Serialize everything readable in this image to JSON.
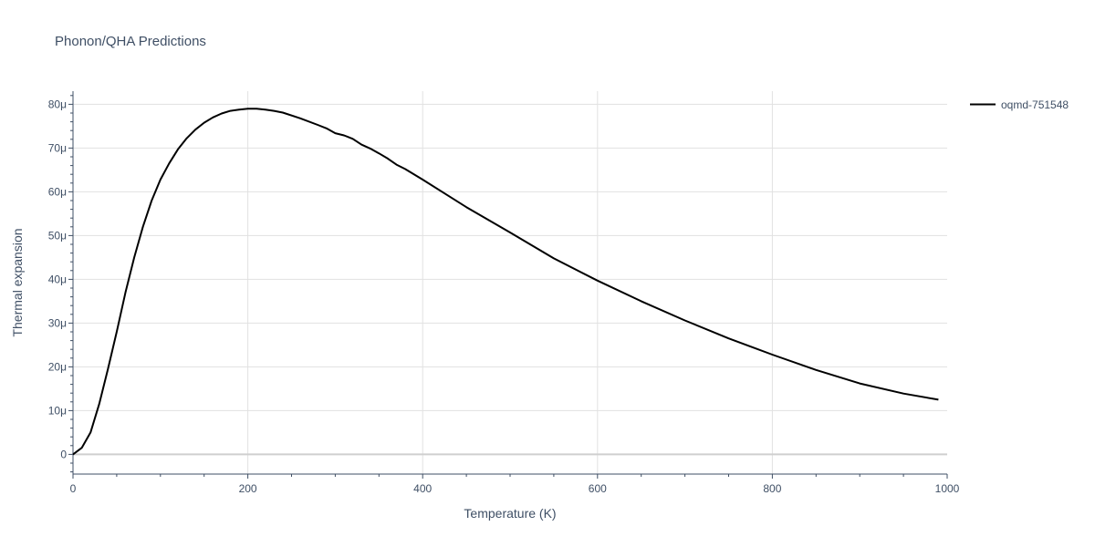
{
  "chart_data": {
    "type": "line",
    "title": "Phonon/QHA Predictions",
    "xlabel": "Temperature (K)",
    "ylabel": "Thermal expansion",
    "xlim": [
      0,
      1000
    ],
    "ylim": [
      -4.5,
      83
    ],
    "x_ticks": [
      0,
      200,
      400,
      600,
      800,
      1000
    ],
    "x_tick_labels": [
      "0",
      "200",
      "400",
      "600",
      "800",
      "1000"
    ],
    "y_ticks": [
      0,
      10,
      20,
      30,
      40,
      50,
      60,
      70,
      80
    ],
    "y_tick_labels": [
      "0",
      "10μ",
      "20μ",
      "30μ",
      "40μ",
      "50μ",
      "60μ",
      "70μ",
      "80μ"
    ],
    "grid": true,
    "legend_position": "top-right",
    "series": [
      {
        "name": "oqmd-751548",
        "color": "#000000",
        "x": [
          0,
          10,
          20,
          30,
          40,
          50,
          60,
          70,
          80,
          90,
          100,
          110,
          120,
          130,
          140,
          150,
          160,
          170,
          180,
          190,
          200,
          210,
          220,
          230,
          240,
          260,
          280,
          290,
          300,
          310,
          320,
          330,
          340,
          350,
          360,
          370,
          380,
          400,
          450,
          500,
          550,
          600,
          650,
          700,
          750,
          800,
          850,
          900,
          950,
          990
        ],
        "values": [
          0,
          1.5,
          5,
          11.5,
          19.5,
          28,
          37,
          45,
          52,
          58,
          62.8,
          66.5,
          69.7,
          72.2,
          74.2,
          75.8,
          77,
          77.9,
          78.5,
          78.8,
          79,
          79,
          78.8,
          78.5,
          78.1,
          76.8,
          75.3,
          74.5,
          73.4,
          72.9,
          72.1,
          70.8,
          69.9,
          68.8,
          67.6,
          66.2,
          65.2,
          62.8,
          56.5,
          50.7,
          44.8,
          39.7,
          35,
          30.6,
          26.5,
          22.8,
          19.3,
          16.2,
          13.9,
          12.5
        ]
      }
    ]
  }
}
